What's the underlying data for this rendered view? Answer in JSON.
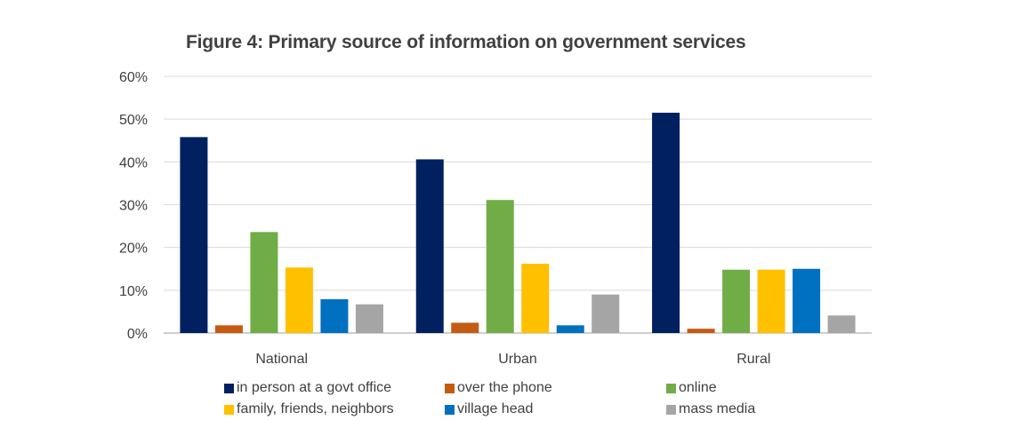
{
  "chart_data": {
    "type": "bar",
    "title": "Figure 4: Primary source of information on government services",
    "categories": [
      "National",
      "Urban",
      "Rural"
    ],
    "ylim": [
      0,
      60
    ],
    "yticks": [
      "0%",
      "10%",
      "20%",
      "30%",
      "40%",
      "50%",
      "60%"
    ],
    "grid": true,
    "legend_position": "bottom",
    "series": [
      {
        "name": "in person at a govt office",
        "color": "#002060",
        "values": [
          45.8,
          40.6,
          51.5
        ]
      },
      {
        "name": "over the phone",
        "color": "#c55a11",
        "values": [
          1.8,
          2.4,
          1.0
        ]
      },
      {
        "name": "online",
        "color": "#70ad47",
        "values": [
          23.6,
          31.1,
          14.8
        ]
      },
      {
        "name": "family, friends, neighbors",
        "color": "#ffc000",
        "values": [
          15.3,
          16.2,
          14.8
        ]
      },
      {
        "name": "village head",
        "color": "#0070c0",
        "values": [
          7.9,
          1.8,
          15.0
        ]
      },
      {
        "name": "mass media",
        "color": "#a5a5a5",
        "values": [
          6.7,
          9.0,
          4.1
        ]
      }
    ]
  }
}
